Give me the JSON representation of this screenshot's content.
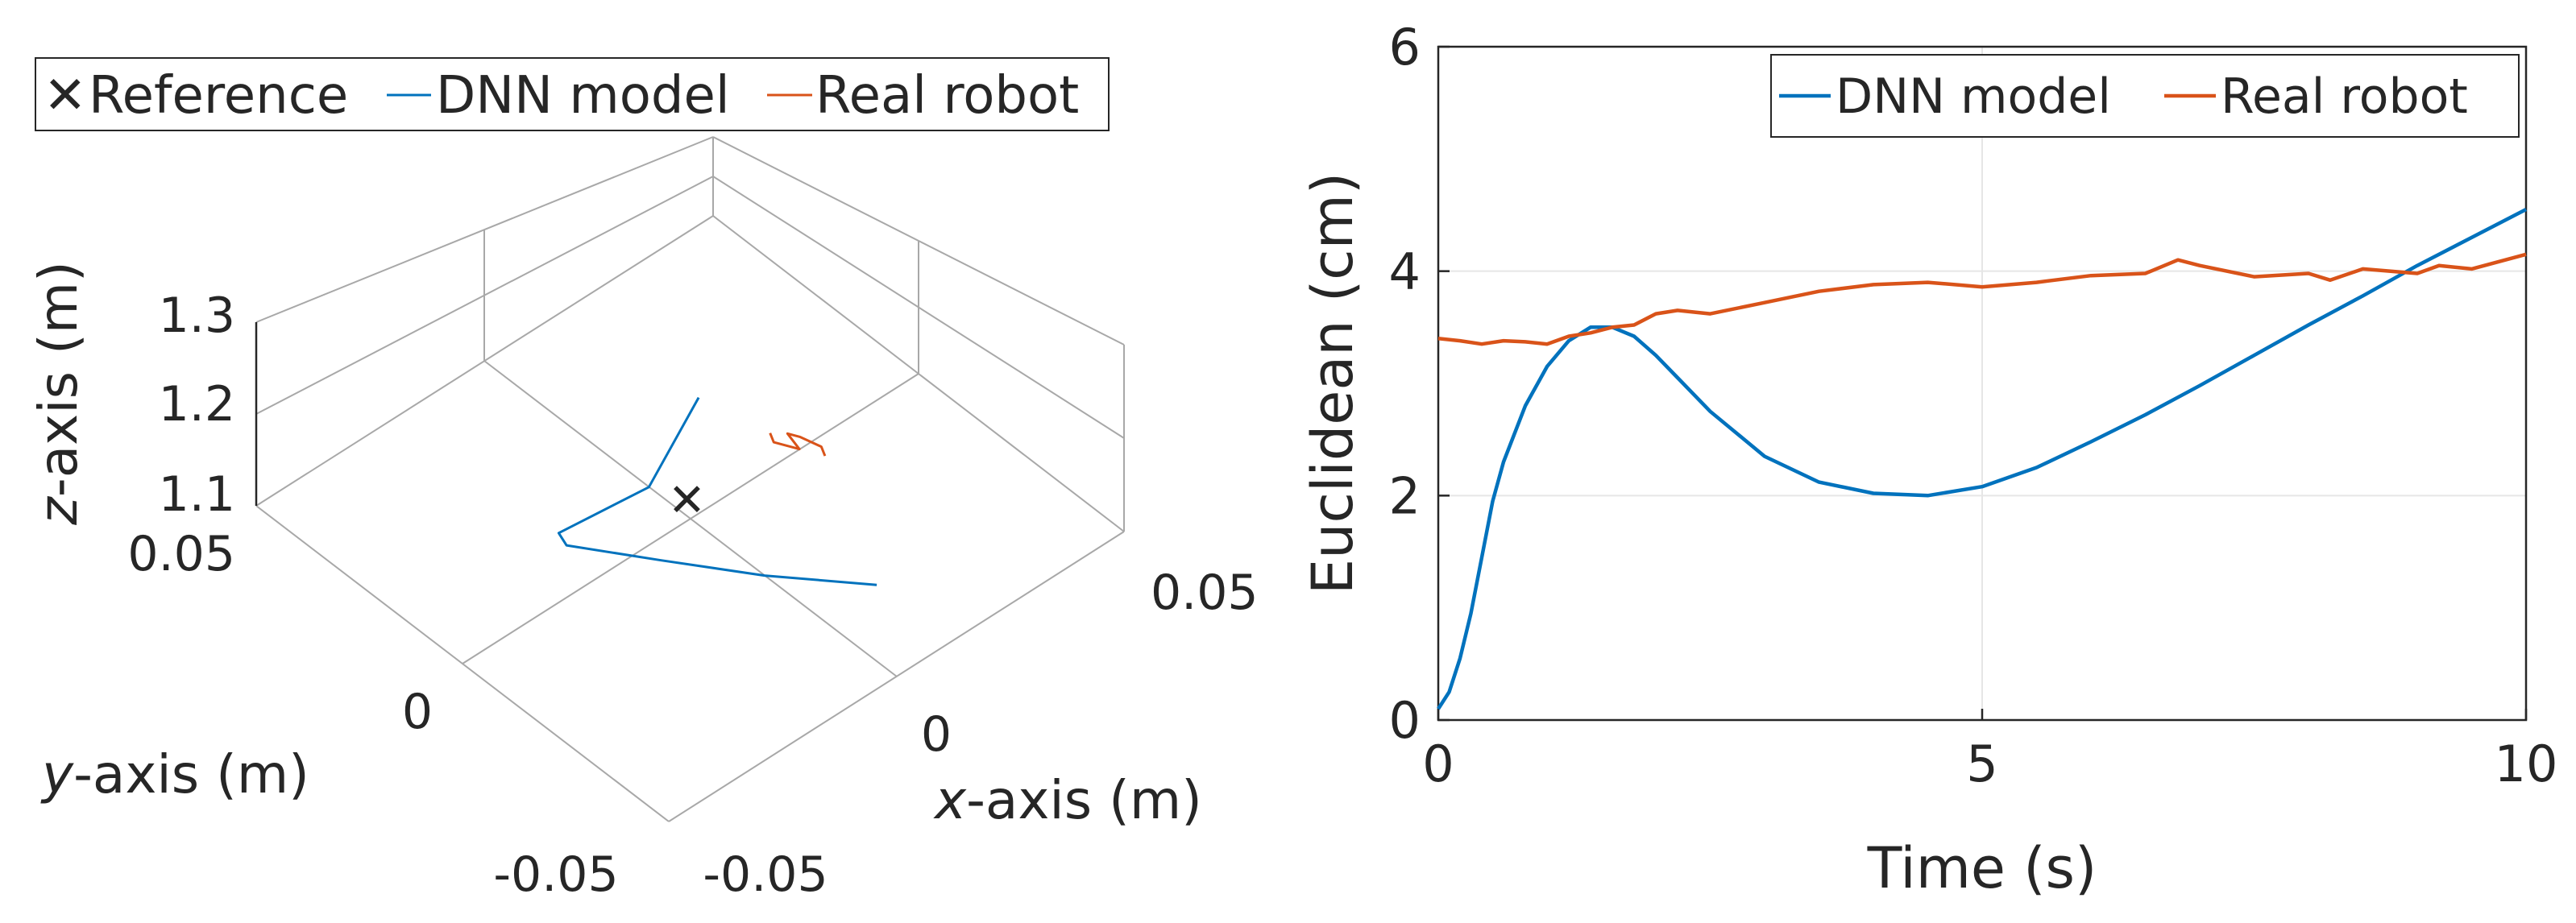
{
  "colors": {
    "dnn": "#0072BD",
    "robot": "#D95319",
    "reference": "#000000",
    "axis": "#262626"
  },
  "chart_data": [
    {
      "type": "line",
      "projection": "3d",
      "title": "",
      "xlabel_italic": "x",
      "xlabel_rest": "-axis (m)",
      "ylabel_italic": "y",
      "ylabel_rest": "-axis (m)",
      "zlabel_italic": "z",
      "zlabel_rest": "-axis (m)",
      "xlim": [
        -0.05,
        0.05
      ],
      "ylim": [
        -0.05,
        0.05
      ],
      "zlim": [
        1.1,
        1.3
      ],
      "x_ticks": [
        "-0.05",
        "0",
        "0.05"
      ],
      "y_ticks": [
        "-0.05",
        "0"
      ],
      "z_ticks": [
        "1.1",
        "1.2",
        "1.3"
      ],
      "z_tick_extra": "0.05",
      "grid": true,
      "legend": {
        "placement": "top",
        "orientation": "horizontal",
        "entries": [
          "Reference",
          "DNN model",
          "Real robot"
        ]
      },
      "series": [
        {
          "name": "Reference",
          "marker": "x",
          "points": [
            [
              0.0,
              0.0,
              1.1
            ]
          ]
        },
        {
          "name": "DNN model",
          "points": [
            [
              0.02,
              0.02,
              1.1
            ],
            [
              0.0,
              0.01,
              1.1
            ],
            [
              -0.018,
              0.012,
              1.1
            ],
            [
              -0.019,
              0.009,
              1.1
            ],
            [
              -0.01,
              -0.004,
              1.1
            ],
            [
              0.0,
              -0.018,
              1.1
            ],
            [
              0.012,
              -0.032,
              1.1
            ]
          ]
        },
        {
          "name": "Real robot",
          "points": [
            [
              0.026,
              -0.004,
              1.1
            ],
            [
              0.027,
              -0.002,
              1.1
            ],
            [
              0.026,
              0.002,
              1.1
            ],
            [
              0.025,
              0.004,
              1.1
            ],
            [
              0.024,
              0.0,
              1.1
            ],
            [
              0.022,
              0.004,
              1.1
            ],
            [
              0.023,
              0.006,
              1.1
            ]
          ]
        }
      ]
    },
    {
      "type": "line",
      "title": "",
      "xlabel": "Time (s)",
      "ylabel": "Euclidean (cm)",
      "xlim": [
        0,
        10
      ],
      "ylim": [
        0,
        6
      ],
      "x_ticks": [
        "0",
        "5",
        "10"
      ],
      "y_ticks": [
        "0",
        "2",
        "4",
        "6"
      ],
      "grid": true,
      "legend": {
        "placement": "top-right",
        "orientation": "horizontal",
        "entries": [
          "DNN model",
          "Real robot"
        ]
      },
      "series": [
        {
          "name": "DNN model",
          "x": [
            0,
            0.1,
            0.2,
            0.3,
            0.4,
            0.5,
            0.6,
            0.7,
            0.8,
            1.0,
            1.2,
            1.4,
            1.6,
            1.8,
            2.0,
            2.2,
            2.5,
            3.0,
            3.5,
            4.0,
            4.5,
            5.0,
            5.5,
            6.0,
            6.5,
            7.0,
            7.5,
            8.0,
            8.5,
            9.0,
            9.5,
            10.0
          ],
          "values": [
            0.1,
            0.25,
            0.55,
            0.95,
            1.45,
            1.95,
            2.3,
            2.55,
            2.8,
            3.15,
            3.38,
            3.5,
            3.5,
            3.42,
            3.25,
            3.05,
            2.75,
            2.35,
            2.12,
            2.02,
            2.0,
            2.08,
            2.25,
            2.48,
            2.72,
            2.98,
            3.25,
            3.52,
            3.78,
            4.05,
            4.3,
            4.55
          ]
        },
        {
          "name": "Real robot",
          "x": [
            0,
            0.2,
            0.4,
            0.6,
            0.8,
            1.0,
            1.2,
            1.4,
            1.6,
            1.8,
            2.0,
            2.2,
            2.5,
            3.0,
            3.5,
            4.0,
            4.5,
            5.0,
            5.5,
            6.0,
            6.5,
            6.8,
            7.0,
            7.5,
            8.0,
            8.2,
            8.5,
            9.0,
            9.2,
            9.5,
            10.0
          ],
          "values": [
            3.4,
            3.38,
            3.35,
            3.38,
            3.37,
            3.35,
            3.42,
            3.45,
            3.5,
            3.52,
            3.62,
            3.65,
            3.62,
            3.72,
            3.82,
            3.88,
            3.9,
            3.86,
            3.9,
            3.96,
            3.98,
            4.1,
            4.05,
            3.95,
            3.98,
            3.92,
            4.02,
            3.98,
            4.05,
            4.02,
            4.15
          ]
        }
      ]
    }
  ]
}
